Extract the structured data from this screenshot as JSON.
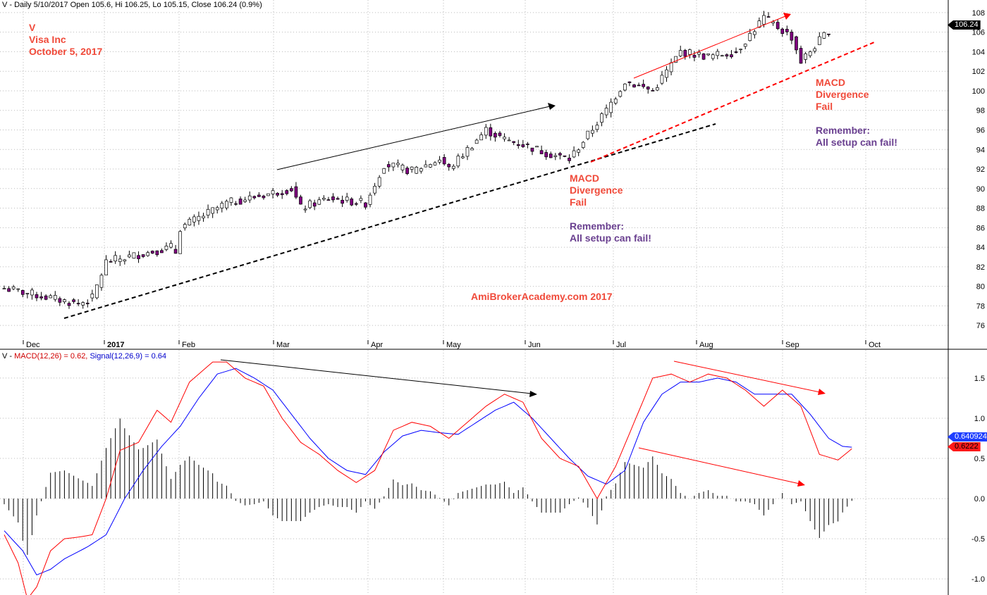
{
  "header": {
    "price_title": "V - Daily 5/10/2017 Open 105.6, Hi 106.25, Lo 105.15, Close 106.24 (0.9%)",
    "macd_prefix": "V - ",
    "macd_label": "MACD(12,26) = 0.62,",
    "signal_label": "Signal(12,26,9) = 0.64"
  },
  "annotations": {
    "ticker": "V",
    "company": "Visa Inc",
    "date": "October 5, 2017",
    "note1_line1": "MACD",
    "note1_line2": "Divergence",
    "note1_line3": "Fail",
    "note1_rem1": "Remember:",
    "note1_rem2": "All setup can fail!",
    "note2_line1": "MACD",
    "note2_line2": "Divergence",
    "note2_line3": "Fail",
    "note2_rem1": "Remember:",
    "note2_rem2": "All setup can fail!",
    "watermark": "AmiBrokerAcademy.com  2017"
  },
  "tags": {
    "last_price": "106.24",
    "signal_value": "0.640924",
    "macd_value": "0.6222"
  },
  "colors": {
    "bull_candle": "#ffffff",
    "bear_candle": "#800080",
    "macd_line": "#ff0000",
    "signal_line": "#0000ff",
    "histogram": "#000000",
    "annotation_red": "#f04a3a",
    "annotation_purple": "#6a4090"
  },
  "chart_data": [
    {
      "type": "candlestick",
      "ylim": [
        74.5,
        109
      ],
      "y_ticks": [
        "76",
        "78",
        "80",
        "82",
        "84",
        "86",
        "88",
        "90",
        "92",
        "94",
        "96",
        "98",
        "100",
        "102",
        "104",
        "106",
        "108"
      ],
      "x_ticks": [
        "Dec",
        "2017",
        "Feb",
        "Mar",
        "Apr",
        "May",
        "Jun",
        "Jul",
        "Aug",
        "Sep",
        "Oct"
      ],
      "grid": true,
      "last_close": 106.24,
      "segments": [
        {
          "from": 0,
          "to": 16,
          "start": 79.8,
          "end": 78.2
        },
        {
          "from": 16,
          "to": 19,
          "start": 78.2,
          "end": 78.8
        },
        {
          "from": 19,
          "to": 22,
          "start": 78.8,
          "end": 82.5
        },
        {
          "from": 22,
          "to": 36,
          "start": 82.5,
          "end": 84.0
        },
        {
          "from": 36,
          "to": 38,
          "start": 84.0,
          "end": 83.0
        },
        {
          "from": 38,
          "to": 48,
          "start": 86.0,
          "end": 88.5
        },
        {
          "from": 48,
          "to": 62,
          "start": 88.5,
          "end": 90.0
        },
        {
          "from": 62,
          "to": 64,
          "start": 90.0,
          "end": 88.0
        },
        {
          "from": 64,
          "to": 70,
          "start": 88.0,
          "end": 89.0
        },
        {
          "from": 70,
          "to": 78,
          "start": 89.0,
          "end": 88.5
        },
        {
          "from": 78,
          "to": 82,
          "start": 88.5,
          "end": 92.5
        },
        {
          "from": 82,
          "to": 88,
          "start": 92.5,
          "end": 91.8
        },
        {
          "from": 88,
          "to": 94,
          "start": 91.8,
          "end": 93.0
        },
        {
          "from": 94,
          "to": 96,
          "start": 93.0,
          "end": 92.0
        },
        {
          "from": 96,
          "to": 104,
          "start": 92.0,
          "end": 96.0
        },
        {
          "from": 104,
          "to": 108,
          "start": 96.0,
          "end": 95.0
        },
        {
          "from": 108,
          "to": 112,
          "start": 95.0,
          "end": 94.5
        },
        {
          "from": 112,
          "to": 118,
          "start": 94.5,
          "end": 93.5
        },
        {
          "from": 118,
          "to": 122,
          "start": 93.5,
          "end": 93.0
        },
        {
          "from": 122,
          "to": 130,
          "start": 93.0,
          "end": 98.0
        },
        {
          "from": 130,
          "to": 134,
          "start": 98.0,
          "end": 101.0
        },
        {
          "from": 134,
          "to": 140,
          "start": 101.0,
          "end": 100.0
        },
        {
          "from": 140,
          "to": 146,
          "start": 100.0,
          "end": 104.0
        },
        {
          "from": 146,
          "to": 152,
          "start": 104.0,
          "end": 103.5
        },
        {
          "from": 152,
          "to": 158,
          "start": 103.5,
          "end": 104.0
        },
        {
          "from": 158,
          "to": 164,
          "start": 104.0,
          "end": 107.5
        },
        {
          "from": 164,
          "to": 170,
          "start": 107.5,
          "end": 105.5
        },
        {
          "from": 170,
          "to": 172,
          "start": 105.5,
          "end": 103.0
        },
        {
          "from": 172,
          "to": 178,
          "start": 103.0,
          "end": 106.2
        }
      ]
    },
    {
      "type": "line",
      "series": [
        {
          "name": "MACD(12,26)",
          "color": "#ff0000",
          "last": 0.62
        },
        {
          "name": "Signal(12,26,9)",
          "color": "#0000ff",
          "last": 0.64
        }
      ],
      "histogram": true,
      "ylim": [
        -1.2,
        1.85
      ],
      "y_ticks": [
        "-1.0",
        "-0.5",
        "0.0",
        "0.5",
        "1.0",
        "1.5"
      ],
      "grid": true,
      "macd_points": [
        [
          0,
          -0.45
        ],
        [
          3,
          -0.8
        ],
        [
          5,
          -1.25
        ],
        [
          7,
          -1.1
        ],
        [
          10,
          -0.65
        ],
        [
          13,
          -0.5
        ],
        [
          16,
          -0.48
        ],
        [
          19,
          -0.45
        ],
        [
          22,
          0.0
        ],
        [
          25,
          0.6
        ],
        [
          29,
          0.7
        ],
        [
          33,
          1.1
        ],
        [
          36,
          0.95
        ],
        [
          40,
          1.45
        ],
        [
          45,
          1.7
        ],
        [
          48,
          1.7
        ],
        [
          52,
          1.5
        ],
        [
          56,
          1.4
        ],
        [
          60,
          1.0
        ],
        [
          64,
          0.7
        ],
        [
          68,
          0.55
        ],
        [
          72,
          0.35
        ],
        [
          76,
          0.2
        ],
        [
          80,
          0.35
        ],
        [
          84,
          0.85
        ],
        [
          88,
          0.95
        ],
        [
          92,
          0.9
        ],
        [
          96,
          0.75
        ],
        [
          100,
          0.95
        ],
        [
          104,
          1.15
        ],
        [
          108,
          1.3
        ],
        [
          112,
          1.2
        ],
        [
          116,
          0.75
        ],
        [
          120,
          0.5
        ],
        [
          124,
          0.4
        ],
        [
          128,
          0.0
        ],
        [
          132,
          0.4
        ],
        [
          136,
          0.95
        ],
        [
          140,
          1.5
        ],
        [
          144,
          1.55
        ],
        [
          148,
          1.45
        ],
        [
          152,
          1.55
        ],
        [
          156,
          1.5
        ],
        [
          160,
          1.35
        ],
        [
          164,
          1.15
        ],
        [
          168,
          1.35
        ],
        [
          172,
          1.15
        ],
        [
          176,
          0.55
        ],
        [
          180,
          0.48
        ],
        [
          183,
          0.62
        ]
      ],
      "signal_points": [
        [
          0,
          -0.4
        ],
        [
          4,
          -0.65
        ],
        [
          7,
          -0.95
        ],
        [
          10,
          -0.88
        ],
        [
          13,
          -0.75
        ],
        [
          18,
          -0.6
        ],
        [
          22,
          -0.45
        ],
        [
          26,
          0.0
        ],
        [
          30,
          0.35
        ],
        [
          34,
          0.65
        ],
        [
          38,
          0.9
        ],
        [
          42,
          1.25
        ],
        [
          46,
          1.55
        ],
        [
          50,
          1.62
        ],
        [
          54,
          1.5
        ],
        [
          58,
          1.35
        ],
        [
          62,
          1.05
        ],
        [
          66,
          0.75
        ],
        [
          70,
          0.5
        ],
        [
          74,
          0.35
        ],
        [
          78,
          0.3
        ],
        [
          82,
          0.58
        ],
        [
          86,
          0.78
        ],
        [
          90,
          0.85
        ],
        [
          94,
          0.82
        ],
        [
          98,
          0.8
        ],
        [
          102,
          0.95
        ],
        [
          106,
          1.1
        ],
        [
          110,
          1.2
        ],
        [
          114,
          1.0
        ],
        [
          118,
          0.75
        ],
        [
          122,
          0.5
        ],
        [
          126,
          0.28
        ],
        [
          130,
          0.18
        ],
        [
          134,
          0.35
        ],
        [
          138,
          0.95
        ],
        [
          142,
          1.3
        ],
        [
          146,
          1.45
        ],
        [
          150,
          1.45
        ],
        [
          154,
          1.5
        ],
        [
          158,
          1.45
        ],
        [
          162,
          1.3
        ],
        [
          166,
          1.3
        ],
        [
          170,
          1.3
        ],
        [
          174,
          1.05
        ],
        [
          178,
          0.75
        ],
        [
          181,
          0.65
        ],
        [
          183,
          0.64
        ]
      ]
    }
  ]
}
